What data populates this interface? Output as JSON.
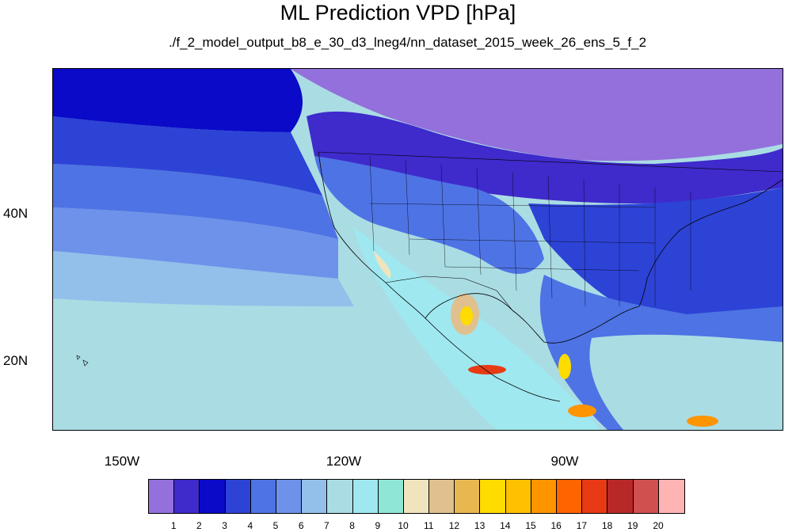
{
  "title": "ML Prediction VPD [hPa]",
  "subtitle": "./f_2_model_output_b8_e_30_d3_lneg4/nn_dataset_2015_week_26_ens_5_f_2",
  "lat_labels": [
    "40N",
    "20N"
  ],
  "lon_labels": [
    "150W",
    "120W",
    "90W"
  ],
  "colorbar": {
    "labels": [
      "1",
      "2",
      "3",
      "4",
      "5",
      "6",
      "7",
      "8",
      "9",
      "10",
      "11",
      "12",
      "13",
      "14",
      "15",
      "16",
      "17",
      "18",
      "19",
      "20"
    ],
    "colors": [
      "#9370db",
      "#3f2acb",
      "#0a0ac8",
      "#2d43d6",
      "#4e73e4",
      "#6e92ea",
      "#92c0ea",
      "#aadce4",
      "#a0e8f0",
      "#90e6d6",
      "#f0e4bc",
      "#e0c08e",
      "#e8b850",
      "#fedc00",
      "#fec000",
      "#fe9400",
      "#fe6400",
      "#e83a14",
      "#b82828",
      "#d05050",
      "#ffb4b4"
    ]
  },
  "regions": {
    "arctic": "#9370db",
    "band3": "#3f2acb",
    "band4": "#0a0ac8",
    "band5": "#2d43d6",
    "band6": "#4e73e4",
    "band7": "#6e92ea",
    "band8": "#92c0ea",
    "band9": "#aadce4",
    "band10": "#a0e8f0",
    "dry1": "#f0e4bc",
    "dry2": "#e0c08e",
    "hot1": "#fedc00",
    "hot2": "#fe9400",
    "hot3": "#e83a14"
  }
}
